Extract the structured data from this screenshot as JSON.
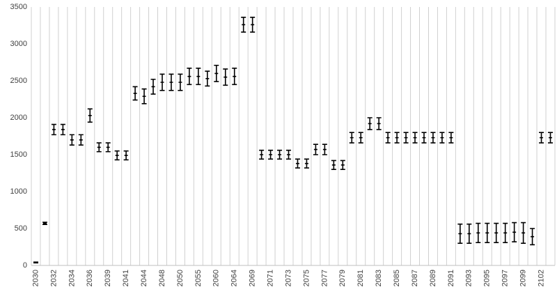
{
  "chart_data": {
    "type": "errorbar",
    "categories": [
      "2030",
      null,
      "2032",
      null,
      "2034",
      null,
      "2036",
      null,
      "2039",
      null,
      "2041",
      null,
      "2044",
      null,
      "2048",
      null,
      "2050",
      null,
      "2055",
      null,
      "2060",
      null,
      "2064",
      null,
      "2069",
      null,
      "2071",
      null,
      "2073",
      null,
      "2075",
      null,
      "2077",
      null,
      "2079",
      null,
      "2081",
      null,
      "2083",
      null,
      "2085",
      null,
      "2087",
      null,
      "2089",
      null,
      "2091",
      null,
      "2093",
      null,
      "2095",
      null,
      "2097",
      null,
      "2099",
      null,
      "2102",
      null
    ],
    "series": [
      {
        "color": "#000000",
        "values": [
          40,
          570,
          1840,
          1840,
          1700,
          1700,
          2030,
          1600,
          1600,
          1490,
          1490,
          2330,
          2290,
          2420,
          2480,
          2480,
          2480,
          2560,
          2560,
          2530,
          2600,
          2550,
          2560,
          3260,
          3260,
          1500,
          1500,
          1500,
          1500,
          1380,
          1380,
          1570,
          1570,
          1360,
          1360,
          1730,
          1730,
          1920,
          1920,
          1730,
          1730,
          1730,
          1730,
          1730,
          1730,
          1730,
          1730,
          430,
          430,
          440,
          440,
          440,
          440,
          450,
          440,
          390,
          1730,
          1730
        ],
        "errors": [
          5,
          15,
          70,
          70,
          70,
          70,
          90,
          60,
          60,
          60,
          60,
          90,
          100,
          100,
          110,
          110,
          110,
          110,
          110,
          100,
          110,
          110,
          110,
          100,
          100,
          60,
          60,
          60,
          60,
          60,
          60,
          70,
          70,
          60,
          60,
          70,
          70,
          80,
          80,
          70,
          70,
          70,
          70,
          70,
          70,
          70,
          70,
          130,
          130,
          130,
          130,
          130,
          130,
          130,
          140,
          110,
          70,
          70
        ]
      }
    ],
    "ylim": [
      0,
      3500
    ],
    "yticks": [
      0,
      500,
      1000,
      1500,
      2000,
      2500,
      3000,
      3500
    ],
    "grid": true
  }
}
